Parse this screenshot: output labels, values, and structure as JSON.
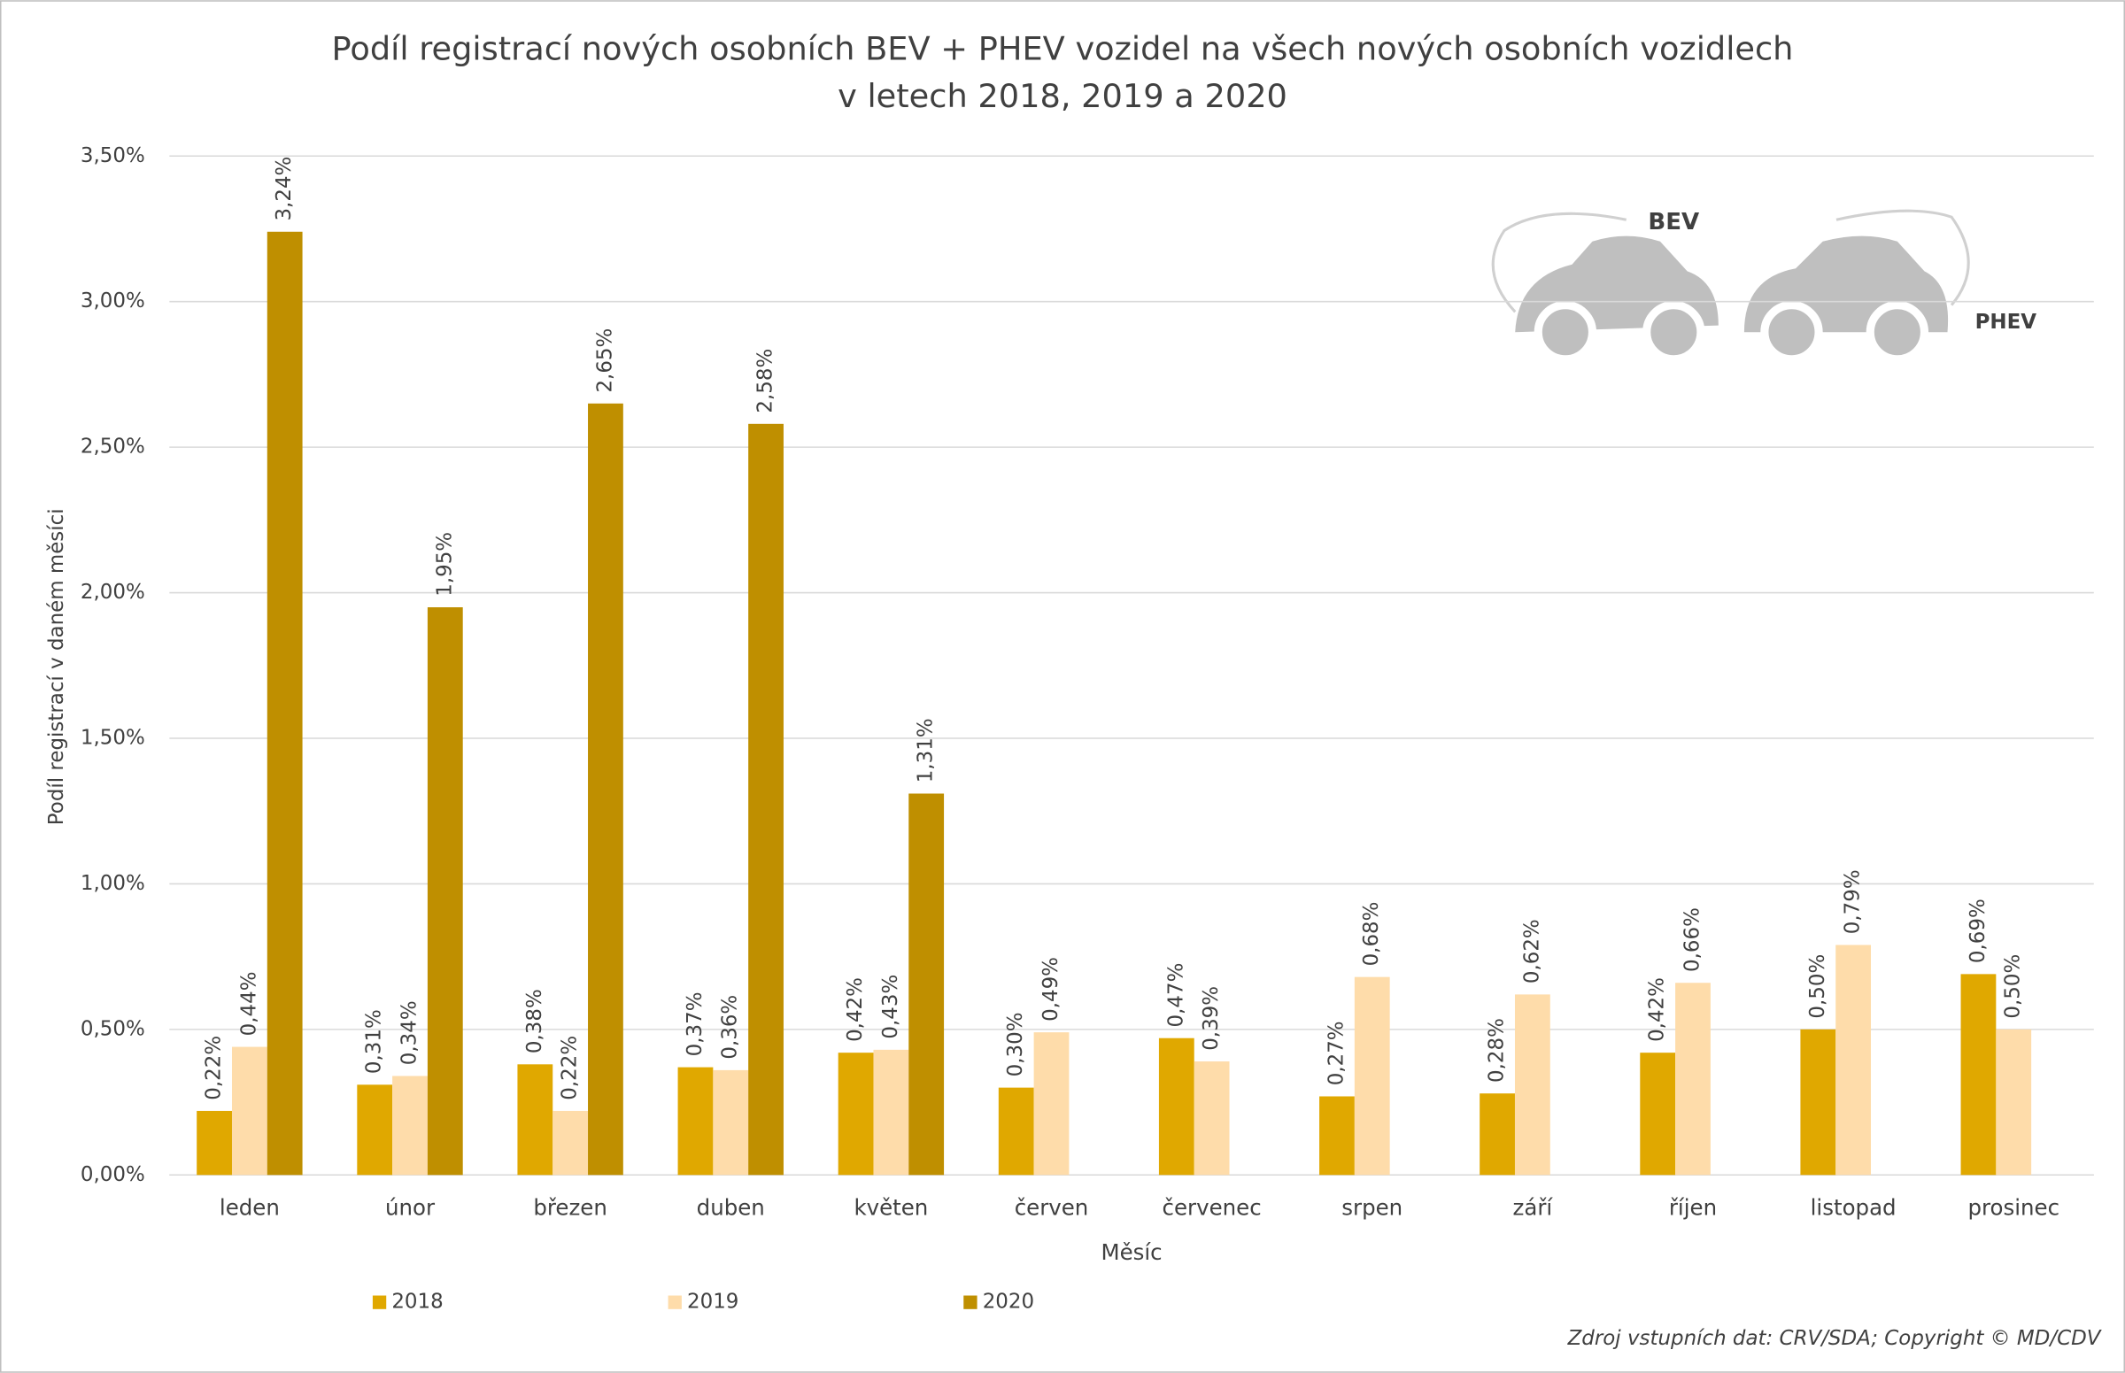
{
  "chart_data": {
    "type": "bar",
    "title": [
      "Podíl registrací nových osobních BEV + PHEV vozidel na všech nových osobních vozidlech",
      "v letech 2018, 2019 a 2020"
    ],
    "x_label": "Měsíc",
    "y_label": "Podíl registrací v daném měsíci",
    "source": "Zdroj vstupních dat: CRV/SDA; Copyright © MD/CDV",
    "icon_labels": [
      "BEV",
      "PHEV"
    ],
    "categories": [
      "leden",
      "únor",
      "březen",
      "duben",
      "květen",
      "červen",
      "červenec",
      "srpen",
      "září",
      "říjen",
      "listopad",
      "prosinec"
    ],
    "series": [
      {
        "name": "2018",
        "color": "#e0a800",
        "values": [
          0.22,
          0.31,
          0.38,
          0.37,
          0.42,
          0.3,
          0.47,
          0.27,
          0.28,
          0.42,
          0.5,
          0.69
        ],
        "value_labels": [
          "0,22%",
          "0,31%",
          "0,38%",
          "0,37%",
          "0,42%",
          "0,30%",
          "0,47%",
          "0,27%",
          "0,28%",
          "0,42%",
          "0,50%",
          "0,69%"
        ]
      },
      {
        "name": "2019",
        "color": "#fedcaa",
        "values": [
          0.44,
          0.34,
          0.22,
          0.36,
          0.43,
          0.49,
          0.39,
          0.68,
          0.62,
          0.66,
          0.79,
          0.5
        ],
        "value_labels": [
          "0,44%",
          "0,34%",
          "0,22%",
          "0,36%",
          "0,43%",
          "0,49%",
          "0,39%",
          "0,68%",
          "0,62%",
          "0,66%",
          "0,79%",
          "0,50%"
        ]
      },
      {
        "name": "2020",
        "color": "#bf8f00",
        "values": [
          3.24,
          1.95,
          2.65,
          2.58,
          1.31,
          null,
          null,
          null,
          null,
          null,
          null,
          null
        ],
        "value_labels": [
          "3,24%",
          "1,95%",
          "2,65%",
          "2,58%",
          "1,31%",
          null,
          null,
          null,
          null,
          null,
          null,
          null
        ]
      }
    ],
    "ylim": [
      0,
      3.5
    ],
    "yticks": [
      {
        "value": 0,
        "label": "0,00%"
      },
      {
        "value": 0.5,
        "label": "0,50%"
      },
      {
        "value": 1,
        "label": "1,00%"
      },
      {
        "value": 1.5,
        "label": "1,50%"
      },
      {
        "value": 2,
        "label": "2,00%"
      },
      {
        "value": 2.5,
        "label": "2,50%"
      },
      {
        "value": 3,
        "label": "3,00%"
      },
      {
        "value": 3.5,
        "label": "3,50%"
      }
    ],
    "grid": true,
    "legend": "bottom"
  }
}
